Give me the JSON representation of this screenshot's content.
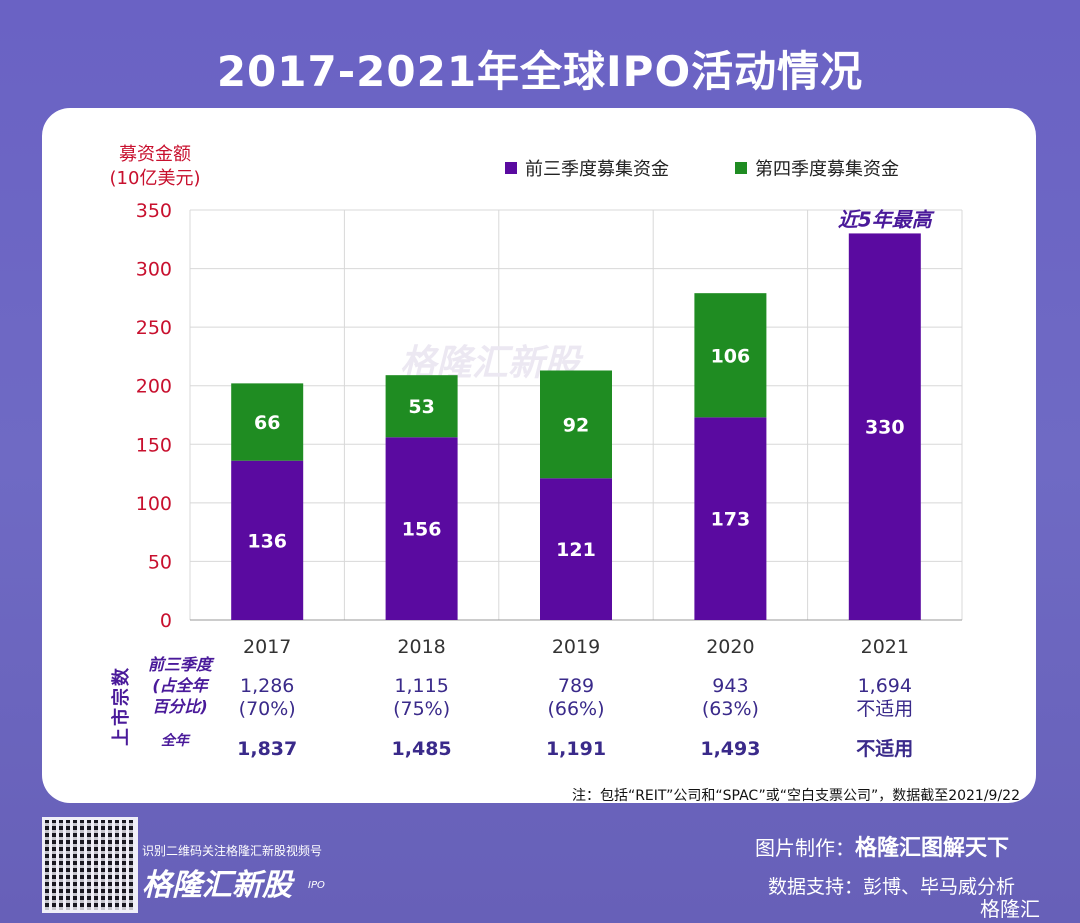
{
  "title": "2017-2021年全球IPO活动情况",
  "chart_data": {
    "type": "bar",
    "stacked": true,
    "categories": [
      "2017",
      "2018",
      "2019",
      "2020",
      "2021"
    ],
    "series": [
      {
        "name": "前三季度募集资金",
        "color": "#5a0aa0",
        "values": [
          136,
          156,
          121,
          173,
          330
        ]
      },
      {
        "name": "第四季度募集资金",
        "color": "#1f8c22",
        "values": [
          66,
          53,
          92,
          106,
          null
        ]
      }
    ],
    "ylabel": "募资金额\n(10亿美元)",
    "ylabel_lines": [
      "募资金额",
      "(10亿美元)"
    ],
    "ylim": [
      0,
      350
    ],
    "yticks": [
      0,
      50,
      100,
      150,
      200,
      250,
      300,
      350
    ],
    "annotation": "近5年最高",
    "legend": "top",
    "grid": true,
    "watermark": "格隆汇新股"
  },
  "table": {
    "side_label": "上市宗数",
    "row1_label": [
      "前三季度",
      "(占全年",
      "百分比)"
    ],
    "row1": [
      [
        "1,286",
        "(70%)"
      ],
      [
        "1,115",
        "(75%)"
      ],
      [
        "789",
        "(66%)"
      ],
      [
        "943",
        "(63%)"
      ],
      [
        "1,694",
        "不适用"
      ]
    ],
    "row2_label": "全年",
    "row2": [
      "1,837",
      "1,485",
      "1,191",
      "1,493",
      "不适用"
    ]
  },
  "note": "注：包括“REIT”公司和“SPAC”或“空白支票公司”，数据截至2021/9/22",
  "footer": {
    "scan": "识别二维码关注格隆汇新股视频号",
    "brand": "格隆汇新股",
    "ipo": "IPO",
    "made_label": "图片制作：",
    "made_by": "格隆汇图解天下",
    "source": "数据支持：彭博、毕马威分析",
    "watermark": "格隆汇"
  }
}
